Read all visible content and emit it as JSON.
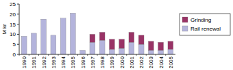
{
  "chart_data": {
    "type": "bar",
    "stacked": true,
    "ylabel": "M kr",
    "categories": [
      "1990",
      "1991",
      "1992",
      "1993",
      "1994",
      "1995",
      "1996",
      "1997",
      "1998",
      "1999",
      "2000",
      "2001",
      "2002",
      "2003",
      "2004",
      "2005"
    ],
    "series": [
      {
        "name": "Rail renewal",
        "color": "#b4b4dc",
        "values": [
          9,
          10.5,
          17.5,
          9.5,
          18,
          20.5,
          2,
          6,
          7,
          2.5,
          3,
          6,
          5,
          2,
          2,
          2.5
        ]
      },
      {
        "name": "Grinding",
        "color": "#993366",
        "values": [
          0,
          0,
          0,
          0,
          0,
          0,
          0,
          4,
          4,
          5,
          4.5,
          5,
          4.5,
          4.5,
          4,
          4
        ]
      }
    ],
    "ylim": [
      0,
      25
    ],
    "yticks": [
      0,
      5,
      10,
      15,
      20,
      25
    ],
    "grid": false,
    "legend": "right"
  }
}
